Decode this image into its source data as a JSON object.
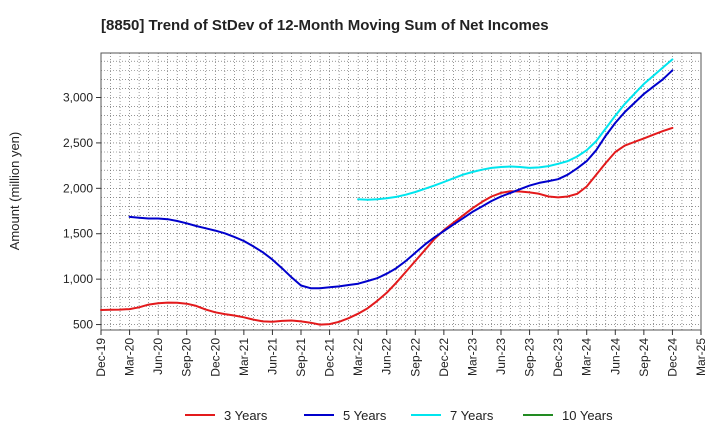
{
  "chart_data": {
    "type": "line",
    "title": "[8850]  Trend of StDev of 12-Month Moving Sum of Net Incomes",
    "xlabel": "",
    "ylabel": "Amount (million yen)",
    "x_ticks": [
      "Dec-19",
      "Mar-20",
      "Jun-20",
      "Sep-20",
      "Dec-20",
      "Mar-21",
      "Jun-21",
      "Sep-21",
      "Dec-21",
      "Mar-22",
      "Jun-22",
      "Sep-22",
      "Dec-22",
      "Mar-23",
      "Jun-23",
      "Sep-23",
      "Dec-23",
      "Mar-24",
      "Jun-24",
      "Sep-24",
      "Dec-24",
      "Mar-25"
    ],
    "y_ticks": [
      500,
      1000,
      1500,
      2000,
      2500,
      3000
    ],
    "y_tick_labels": [
      "500",
      "1,000",
      "1,500",
      "2,000",
      "2,500",
      "3,000"
    ],
    "ylim": [
      440,
      3490
    ],
    "grid": true,
    "legend_position": "bottom",
    "x_dates": [
      "2019-12",
      "2020-01",
      "2020-02",
      "2020-03",
      "2020-04",
      "2020-05",
      "2020-06",
      "2020-07",
      "2020-08",
      "2020-09",
      "2020-10",
      "2020-11",
      "2020-12",
      "2021-01",
      "2021-02",
      "2021-03",
      "2021-04",
      "2021-05",
      "2021-06",
      "2021-07",
      "2021-08",
      "2021-09",
      "2021-10",
      "2021-11",
      "2021-12",
      "2022-01",
      "2022-02",
      "2022-03",
      "2022-04",
      "2022-05",
      "2022-06",
      "2022-07",
      "2022-08",
      "2022-09",
      "2022-10",
      "2022-11",
      "2022-12",
      "2023-01",
      "2023-02",
      "2023-03",
      "2023-04",
      "2023-05",
      "2023-06",
      "2023-07",
      "2023-08",
      "2023-09",
      "2023-10",
      "2023-11",
      "2023-12",
      "2024-01",
      "2024-02",
      "2024-03",
      "2024-04",
      "2024-05",
      "2024-06",
      "2024-07",
      "2024-08",
      "2024-09",
      "2024-10",
      "2024-11",
      "2024-12"
    ],
    "series": [
      {
        "name": "3 Years",
        "color": "#e31a1c",
        "values": [
          660,
          662,
          665,
          670,
          690,
          720,
          735,
          742,
          740,
          730,
          705,
          665,
          635,
          615,
          600,
          580,
          555,
          535,
          530,
          540,
          545,
          535,
          520,
          500,
          505,
          530,
          570,
          620,
          680,
          760,
          850,
          960,
          1080,
          1200,
          1320,
          1440,
          1540,
          1620,
          1700,
          1780,
          1850,
          1910,
          1950,
          1968,
          1965,
          1955,
          1940,
          1910,
          1900,
          1910,
          1940,
          2020,
          2150,
          2280,
          2400,
          2470,
          2510,
          2550,
          2590,
          2630,
          2665
        ]
      },
      {
        "name": "5 Years",
        "color": "#0000cc",
        "values": [
          null,
          null,
          null,
          1685,
          1675,
          1668,
          1668,
          1660,
          1640,
          1615,
          1585,
          1560,
          1535,
          1505,
          1465,
          1420,
          1360,
          1295,
          1215,
          1120,
          1020,
          930,
          900,
          900,
          910,
          920,
          935,
          950,
          980,
          1010,
          1060,
          1120,
          1200,
          1290,
          1380,
          1460,
          1530,
          1600,
          1670,
          1740,
          1800,
          1860,
          1910,
          1950,
          1990,
          2030,
          2060,
          2080,
          2100,
          2150,
          2220,
          2300,
          2420,
          2580,
          2720,
          2840,
          2940,
          3040,
          3120,
          3200,
          3300
        ]
      },
      {
        "name": "7 Years",
        "color": "#00e5ee",
        "values": [
          null,
          null,
          null,
          null,
          null,
          null,
          null,
          null,
          null,
          null,
          null,
          null,
          null,
          null,
          null,
          null,
          null,
          null,
          null,
          null,
          null,
          null,
          null,
          null,
          null,
          null,
          null,
          1880,
          1875,
          1880,
          1890,
          1905,
          1930,
          1960,
          1995,
          2030,
          2070,
          2110,
          2150,
          2180,
          2205,
          2225,
          2235,
          2240,
          2235,
          2225,
          2230,
          2245,
          2270,
          2300,
          2350,
          2420,
          2520,
          2660,
          2800,
          2930,
          3040,
          3150,
          3240,
          3330,
          3420
        ]
      },
      {
        "name": "10 Years",
        "color": "#228b22",
        "values": []
      }
    ]
  }
}
